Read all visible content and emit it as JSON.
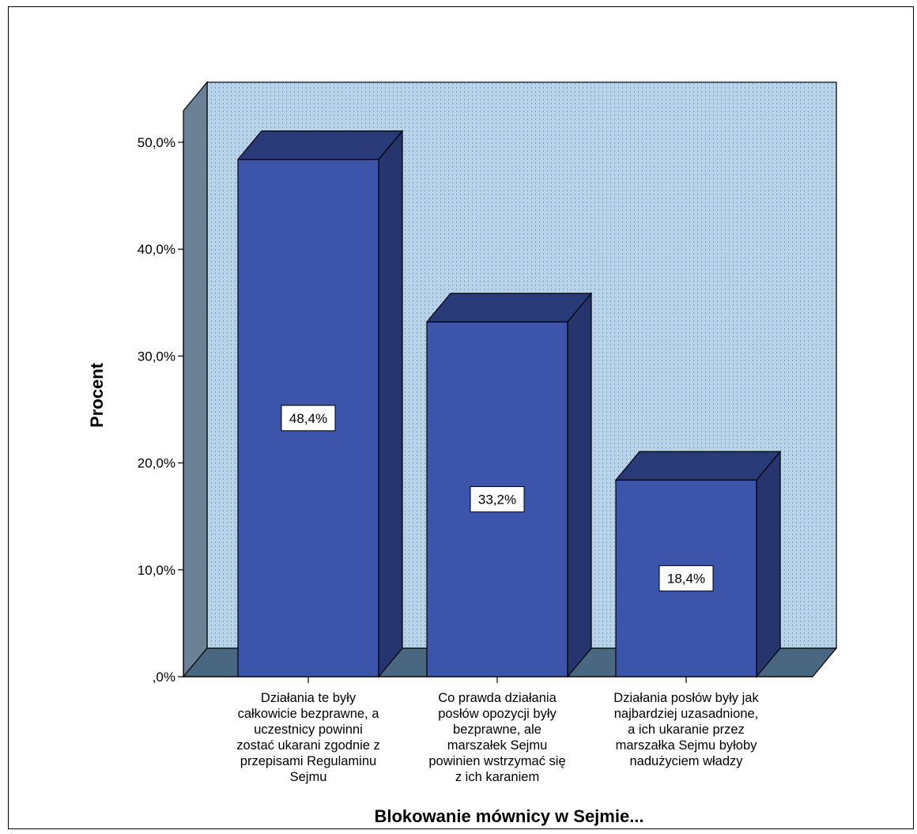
{
  "chart_data": {
    "type": "bar",
    "title": "",
    "xlabel": "Blokowanie mównicy w Sejmie...",
    "ylabel": "Procent",
    "ylim": [
      0,
      50
    ],
    "yticks": [
      0,
      10,
      20,
      30,
      40,
      50
    ],
    "ytick_labels": [
      ",0%",
      "10,0%",
      "20,0%",
      "30,0%",
      "40,0%",
      "50,0%"
    ],
    "categories": [
      [
        "Działania te były",
        "całkowicie bezprawne, a",
        "uczestnicy powinni",
        "zostać ukarani zgodnie z",
        "przepisami Regulaminu",
        "Sejmu"
      ],
      [
        "Co prawda działania",
        "posłów opozycji były",
        "bezprawne, ale",
        "marszałek Sejmu",
        "powinien wstrzymać się",
        "z ich karaniem"
      ],
      [
        "Działania posłów były jak",
        "najbardziej uzasadnione,",
        "a ich ukaranie przez",
        "marszałka Sejmu byłoby",
        "nadużyciem władzy"
      ]
    ],
    "values": [
      48.4,
      33.2,
      18.4
    ],
    "data_labels": [
      "48,4%",
      "33,2%",
      "18,4%"
    ],
    "grid": false,
    "legend": "none",
    "colors": {
      "bar_front": "#3c54aa",
      "bar_top": "#283a78",
      "bar_side": "#27356f",
      "plot_back": "#b8d4ea",
      "plot_hatch": "#7d9cc0",
      "left_wall": "#6c8196",
      "floor": "#4a6781"
    }
  }
}
